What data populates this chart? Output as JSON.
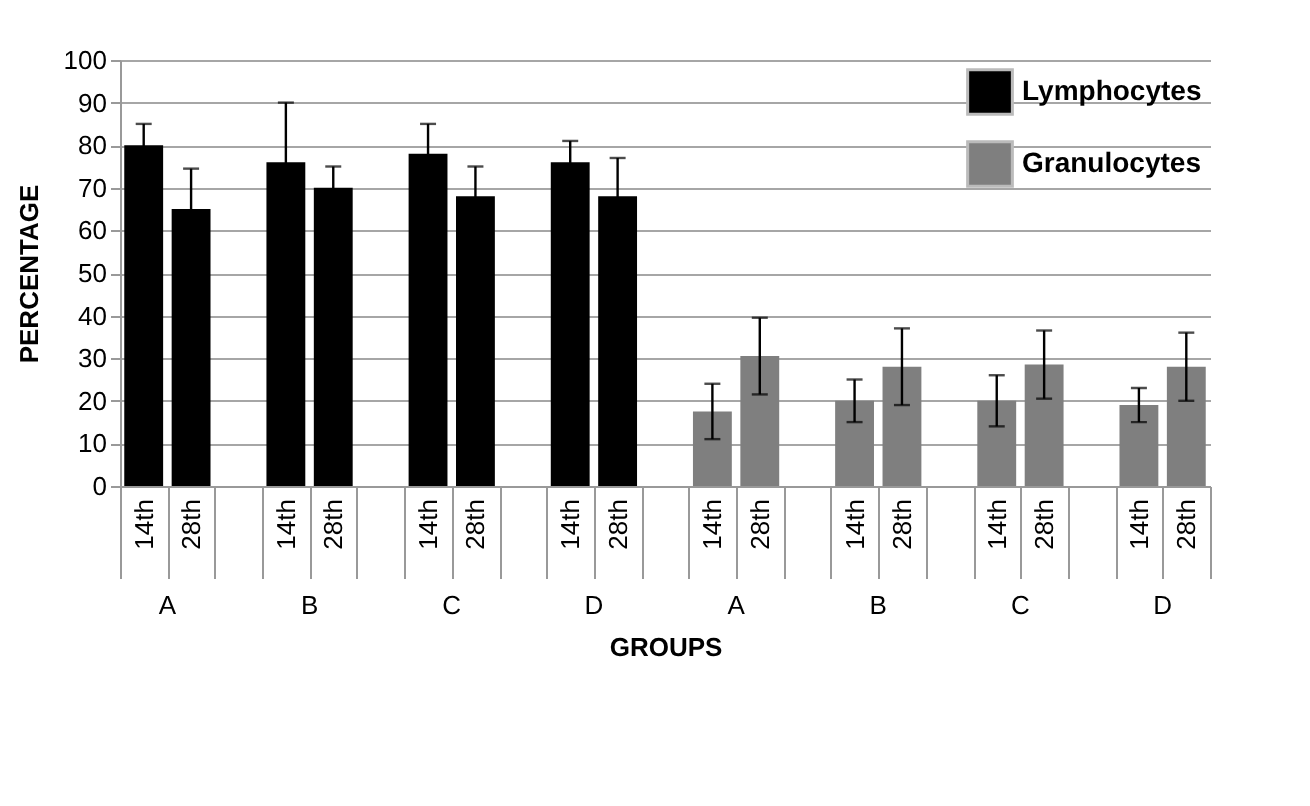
{
  "chart_data": {
    "type": "bar",
    "xlabel": "GROUPS",
    "ylabel": "PERCENTAGE",
    "categories": [
      "14th",
      "28th",
      null,
      "14th",
      "28th",
      null,
      "14th",
      "28th",
      null,
      "14th",
      "28th",
      null,
      "14th",
      "28th",
      null,
      "14th",
      "28th",
      null,
      "14th",
      "28th",
      null,
      "14th",
      "28th"
    ],
    "series": [
      {
        "name": "Lymphocytes",
        "color": "#000000",
        "values": [
          80,
          65,
          null,
          76,
          70,
          null,
          78,
          68,
          null,
          76,
          68,
          null,
          null,
          null,
          null,
          null,
          null,
          null,
          null,
          null,
          null,
          null,
          null
        ],
        "errors": [
          5,
          9.5,
          null,
          14,
          5,
          null,
          7,
          7,
          null,
          5,
          9,
          null,
          null,
          null,
          null,
          null,
          null,
          null,
          null,
          null,
          null,
          null,
          null
        ]
      },
      {
        "name": "Granulocytes",
        "color": "#7f7f7f",
        "values": [
          null,
          null,
          null,
          null,
          null,
          null,
          null,
          null,
          null,
          null,
          null,
          null,
          17.5,
          30.5,
          null,
          20,
          28,
          null,
          20,
          28.5,
          null,
          19,
          28
        ],
        "errors": [
          null,
          null,
          null,
          null,
          null,
          null,
          null,
          null,
          null,
          null,
          null,
          null,
          6.5,
          9,
          null,
          5,
          9,
          null,
          6,
          8,
          null,
          4,
          8
        ]
      }
    ],
    "annotations": [
      "A",
      "B",
      "C",
      "D",
      "A",
      "B",
      "C",
      "D"
    ],
    "ylim": [
      0,
      100
    ],
    "yticks": [
      0,
      10,
      20,
      30,
      40,
      50,
      60,
      70,
      80,
      90,
      100
    ],
    "grid": "y",
    "legend": "top right"
  }
}
